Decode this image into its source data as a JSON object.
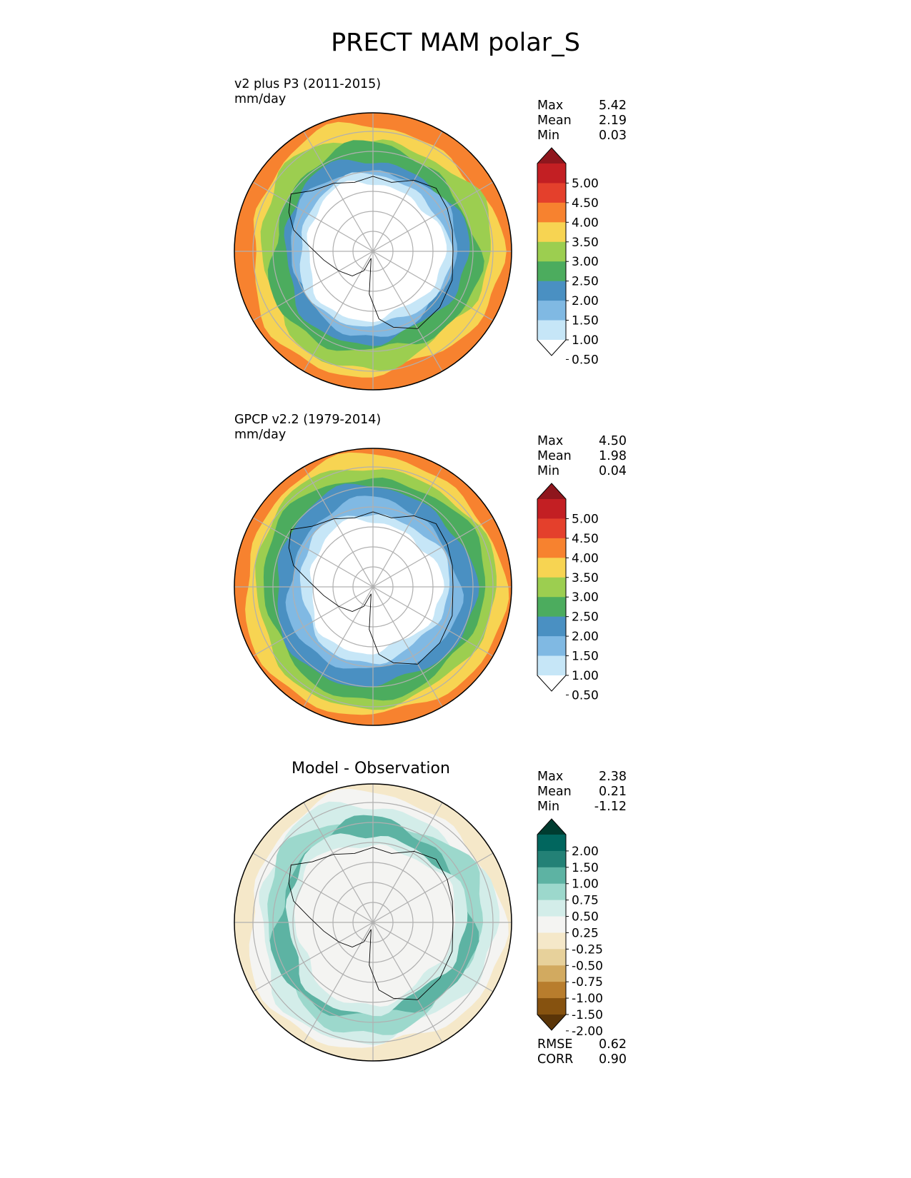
{
  "figure_title": "PRECT MAM polar_S",
  "panels": [
    {
      "title_line1": "v2 plus P3 (2011-2015)",
      "title_line2": "mm/day",
      "stats": [
        {
          "label": "Max",
          "value": "5.42"
        },
        {
          "label": "Mean",
          "value": "2.19"
        },
        {
          "label": "Min",
          "value": "0.03"
        }
      ],
      "colorbar": {
        "labels": [
          "5.00",
          "4.50",
          "4.00",
          "3.50",
          "3.00",
          "2.50",
          "2.00",
          "1.50",
          "1.00",
          "0.50"
        ],
        "colors": [
          "#ffffff",
          "#c6e6f7",
          "#80b9e3",
          "#4a90c2",
          "#4cac5e",
          "#9cce50",
          "#f7d452",
          "#f7822f",
          "#e4402c",
          "#c31f23",
          "#8f161d"
        ]
      }
    },
    {
      "title_line1": "GPCP v2.2 (1979-2014)",
      "title_line2": "mm/day",
      "stats": [
        {
          "label": "Max",
          "value": "4.50"
        },
        {
          "label": "Mean",
          "value": "1.98"
        },
        {
          "label": "Min",
          "value": "0.04"
        }
      ],
      "colorbar": {
        "labels": [
          "5.00",
          "4.50",
          "4.00",
          "3.50",
          "3.00",
          "2.50",
          "2.00",
          "1.50",
          "1.00",
          "0.50"
        ],
        "colors": [
          "#ffffff",
          "#c6e6f7",
          "#80b9e3",
          "#4a90c2",
          "#4cac5e",
          "#9cce50",
          "#f7d452",
          "#f7822f",
          "#e4402c",
          "#c31f23",
          "#8f161d"
        ]
      }
    },
    {
      "title": "Model - Observation",
      "stats": [
        {
          "label": "Max",
          "value": "2.38"
        },
        {
          "label": "Mean",
          "value": "0.21"
        },
        {
          "label": "Min",
          "value": "-1.12"
        }
      ],
      "bottom_stats": [
        {
          "label": "RMSE",
          "value": "0.62"
        },
        {
          "label": "CORR",
          "value": "0.90"
        }
      ],
      "colorbar": {
        "labels": [
          "2.00",
          "1.50",
          "1.00",
          "0.75",
          "0.50",
          "0.25",
          "-0.25",
          "-0.50",
          "-0.75",
          "-1.00",
          "-1.50",
          "-2.00"
        ],
        "colors": [
          "#5a3508",
          "#86520f",
          "#b87d2d",
          "#d2aa60",
          "#e7d19b",
          "#f5e8c9",
          "#f4f4f2",
          "#d3ede9",
          "#9cd8cc",
          "#5db3a3",
          "#238176",
          "#01665e",
          "#003c30"
        ]
      }
    }
  ],
  "palette": {
    "seq": [
      "#ffffff",
      "#c6e6f7",
      "#80b9e3",
      "#4a90c2",
      "#4cac5e",
      "#9cce50",
      "#f7d452",
      "#f7822f",
      "#e4402c",
      "#c31f23"
    ],
    "diff_pos": [
      "#f4f4f2",
      "#d3ede9",
      "#9cd8cc",
      "#5db3a3",
      "#238176"
    ],
    "diff_neg": [
      "#f5e8c9",
      "#e7d19b"
    ]
  }
}
